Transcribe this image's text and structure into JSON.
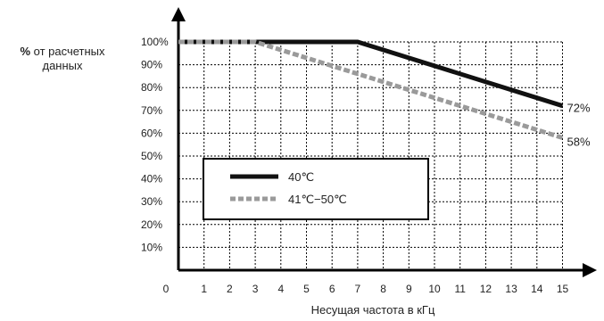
{
  "chart_data": {
    "type": "line",
    "ylabel_prefix": "%",
    "ylabel_line1": " от расчетных",
    "ylabel_line2": "данных",
    "xlabel": "Несущая частота в кГц",
    "x_ticks": [
      "0",
      "1",
      "2",
      "3",
      "4",
      "5",
      "6",
      "7",
      "8",
      "9",
      "10",
      "11",
      "12",
      "13",
      "14",
      "15"
    ],
    "y_ticks": [
      "10%",
      "20%",
      "30%",
      "40%",
      "50%",
      "60%",
      "70%",
      "80%",
      "90%",
      "100%"
    ],
    "xlim": [
      0,
      15
    ],
    "ylim": [
      0,
      100
    ],
    "grid": true,
    "legend_position": "center-left",
    "series": [
      {
        "name": "40℃",
        "style": "solid",
        "color": "#111111",
        "points": [
          [
            0,
            100
          ],
          [
            7,
            100
          ],
          [
            15,
            72
          ]
        ],
        "end_label": "72%"
      },
      {
        "name": "41℃−50℃",
        "style": "dashed",
        "color": "#9a9a9a",
        "points": [
          [
            0,
            100
          ],
          [
            3,
            100
          ],
          [
            15,
            58
          ]
        ],
        "end_label": "58%"
      }
    ]
  }
}
